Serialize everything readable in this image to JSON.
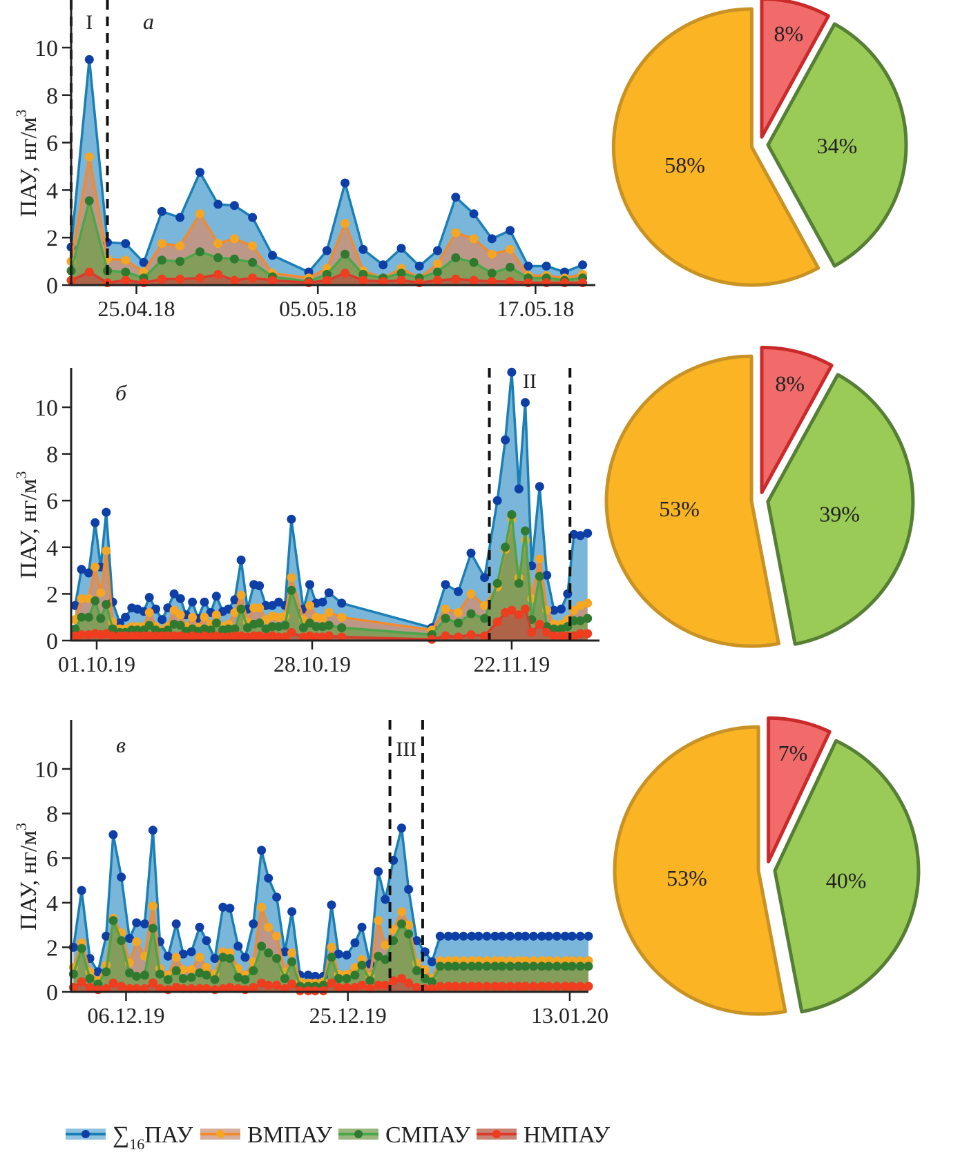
{
  "colors": {
    "total_line": "#1a7fb5",
    "total_marker": "#0d3fa6",
    "total_fill": "#6aaed6",
    "high_line": "#f28a2e",
    "high_marker": "#f5a623",
    "high_fill": "#c9937a",
    "medium_line": "#4aa64a",
    "medium_marker": "#2f7a2f",
    "medium_fill": "#7a9e52",
    "low_line": "#d93a2b",
    "low_marker": "#ee3d1f",
    "low_fill": "#b55a45",
    "pie_high": "#fbb424",
    "pie_high_edge": "#c89224",
    "pie_medium": "#9bcb57",
    "pie_medium_edge": "#567e35",
    "pie_low": "#f26b6b",
    "pie_low_edge": "#c92a2a"
  },
  "legend": {
    "items": [
      {
        "key": "total",
        "label_main": "∑",
        "label_sub": "16",
        "label_rest": "ПАУ"
      },
      {
        "key": "high",
        "label_main": "ВМПАУ",
        "label_sub": "",
        "label_rest": ""
      },
      {
        "key": "medium",
        "label_main": "СМПАУ",
        "label_sub": "",
        "label_rest": ""
      },
      {
        "key": "low",
        "label_main": "НМПАУ",
        "label_sub": "",
        "label_rest": ""
      }
    ]
  },
  "chart_data": [
    {
      "type": "area",
      "panel_label": "а",
      "ylabel": "ПАУ, нг/м",
      "ylabel_sup": "3",
      "ylim": [
        0,
        12
      ],
      "yticks": [
        0,
        2,
        4,
        6,
        8,
        10
      ],
      "xlim_days": [
        -3.6,
        25.3
      ],
      "xticks": [
        {
          "day": 0,
          "label": "25.04.18"
        },
        {
          "day": 10,
          "label": "05.05.18"
        },
        {
          "day": 22,
          "label": "17.05.18"
        }
      ],
      "period_label": "I",
      "period_days": [
        -3.6,
        -1.6
      ],
      "x_days": [
        -3.6,
        -2.6,
        -1.6,
        -0.6,
        0.4,
        1.4,
        2.4,
        3.5,
        4.5,
        5.4,
        6.4,
        7.5,
        9.5,
        10.5,
        11.5,
        12.5,
        13.6,
        14.6,
        15.6,
        16.6,
        17.6,
        18.6,
        19.6,
        20.6,
        21.6,
        22.6,
        23.6,
        24.6
      ],
      "series": [
        {
          "name": "∑16ПАУ",
          "key": "total",
          "values": [
            1.6,
            9.5,
            1.8,
            1.75,
            0.95,
            3.1,
            2.85,
            4.75,
            3.4,
            3.35,
            2.85,
            1.25,
            0.55,
            1.45,
            4.3,
            1.5,
            0.85,
            1.55,
            0.8,
            1.45,
            3.7,
            3.0,
            1.95,
            2.3,
            0.8,
            0.8,
            0.55,
            0.85
          ]
        },
        {
          "name": "ВМПАУ",
          "key": "high",
          "values": [
            1.0,
            5.4,
            1.1,
            1.05,
            0.55,
            1.75,
            1.65,
            3.0,
            1.75,
            1.95,
            1.65,
            0.5,
            0.3,
            0.7,
            2.6,
            0.6,
            0.3,
            0.7,
            0.3,
            0.9,
            2.2,
            1.95,
            1.3,
            1.5,
            0.4,
            0.4,
            0.3,
            0.45
          ]
        },
        {
          "name": "СМПАУ",
          "key": "medium",
          "values": [
            0.6,
            3.55,
            0.6,
            0.55,
            0.3,
            1.05,
            1.0,
            1.4,
            1.15,
            1.1,
            0.95,
            0.35,
            0.15,
            0.45,
            1.3,
            0.45,
            0.3,
            0.5,
            0.3,
            0.55,
            1.15,
            0.95,
            0.5,
            0.75,
            0.3,
            0.3,
            0.2,
            0.3
          ]
        },
        {
          "name": "НМПАУ",
          "key": "low",
          "values": [
            0.2,
            0.55,
            0.1,
            0.2,
            0.1,
            0.25,
            0.25,
            0.3,
            0.45,
            0.2,
            0.3,
            0.2,
            0.1,
            0.2,
            0.5,
            0.2,
            0.15,
            0.2,
            0.1,
            0.2,
            0.25,
            0.2,
            0.15,
            0.15,
            0.1,
            0.1,
            0.1,
            0.1
          ]
        }
      ],
      "pie": {
        "slices": [
          {
            "key": "low",
            "label": "8%",
            "value": 8
          },
          {
            "key": "medium",
            "label": "34%",
            "value": 34
          },
          {
            "key": "high",
            "label": "58%",
            "value": 58
          }
        ]
      }
    },
    {
      "type": "area",
      "panel_label": "б",
      "ylabel": "ПАУ, нг/м",
      "ylabel_sup": "3",
      "ylim": [
        0,
        11.8
      ],
      "yticks": [
        0,
        2,
        4,
        6,
        8,
        10
      ],
      "xlim_days": [
        -3.2,
        63
      ],
      "xticks": [
        {
          "day": 0,
          "label": "01.10.19"
        },
        {
          "day": 27,
          "label": "28.10.19"
        },
        {
          "day": 52,
          "label": "22.11.19"
        }
      ],
      "period_label": "II",
      "period_days": [
        49.2,
        59.3
      ],
      "x_days": [
        -2.7,
        -1.9,
        -1.0,
        -0.2,
        0.5,
        1.2,
        2.0,
        2.9,
        3.6,
        4.4,
        5.1,
        5.9,
        6.6,
        7.4,
        8.2,
        8.9,
        9.7,
        10.5,
        11.2,
        12.0,
        12.7,
        13.5,
        14.3,
        15.0,
        15.8,
        16.5,
        17.3,
        18.1,
        18.9,
        19.7,
        20.4,
        21.2,
        22.0,
        22.8,
        23.6,
        24.4,
        25.9,
        26.7,
        27.5,
        28.3,
        29.1,
        30.7,
        42.0,
        43.7,
        45.3,
        46.9,
        48.6,
        50.2,
        51.2,
        52.0,
        52.9,
        53.7,
        54.5,
        55.5,
        56.4,
        57.3,
        58.2,
        59.0,
        59.8,
        60.6,
        61.5
      ],
      "series": [
        {
          "name": "∑16ПАУ",
          "key": "total",
          "values": [
            1.5,
            3.05,
            2.9,
            5.05,
            3.15,
            5.5,
            1.65,
            0.75,
            1.0,
            1.4,
            1.35,
            1.25,
            1.85,
            1.35,
            0.9,
            1.4,
            2.0,
            1.8,
            1.1,
            1.65,
            0.95,
            1.65,
            1.2,
            1.9,
            1.25,
            1.35,
            1.75,
            3.45,
            1.35,
            2.4,
            2.35,
            1.5,
            1.5,
            1.65,
            1.5,
            5.2,
            1.35,
            2.4,
            1.6,
            1.65,
            2.05,
            1.6,
            0.55,
            2.4,
            2.1,
            3.75,
            2.7,
            6.0,
            8.6,
            11.5,
            6.5,
            10.2,
            3.2,
            6.6,
            2.8,
            1.3,
            1.35,
            2.0,
            4.55,
            4.5,
            4.6
          ]
        },
        {
          "name": "ВМПАУ",
          "key": "high",
          "values": [
            0.9,
            1.8,
            1.8,
            3.15,
            2.05,
            3.85,
            0.8,
            0.5,
            0.5,
            0.6,
            0.6,
            0.6,
            1.2,
            0.6,
            0.45,
            0.6,
            1.3,
            1.1,
            0.6,
            1.0,
            0.55,
            1.0,
            0.7,
            1.1,
            0.6,
            0.7,
            1.2,
            1.95,
            0.8,
            1.4,
            1.4,
            0.9,
            1.05,
            1.0,
            1.05,
            2.7,
            0.9,
            1.5,
            1.0,
            0.95,
            1.2,
            1.0,
            0.45,
            1.35,
            1.2,
            2.0,
            1.5,
            2.3,
            3.9,
            5.2,
            2.7,
            4.3,
            1.8,
            3.5,
            1.3,
            0.7,
            0.7,
            0.9,
            1.3,
            1.5,
            1.6
          ]
        },
        {
          "name": "СМПАУ",
          "key": "medium",
          "values": [
            0.5,
            1.0,
            1.0,
            1.7,
            0.95,
            1.55,
            0.5,
            0.35,
            0.35,
            0.45,
            0.45,
            0.45,
            0.65,
            0.45,
            0.35,
            0.45,
            0.7,
            0.65,
            0.4,
            0.5,
            0.4,
            0.5,
            0.45,
            0.75,
            0.45,
            0.5,
            0.5,
            1.35,
            0.55,
            0.7,
            0.75,
            0.5,
            0.6,
            0.6,
            0.65,
            2.15,
            0.55,
            0.75,
            0.6,
            0.6,
            0.65,
            0.55,
            0.25,
            0.95,
            0.75,
            1.15,
            0.95,
            2.45,
            4.0,
            5.4,
            2.45,
            4.7,
            0.9,
            2.75,
            0.6,
            0.5,
            0.5,
            0.6,
            0.85,
            0.85,
            0.95
          ]
        },
        {
          "name": "НМПАУ",
          "key": "low",
          "values": [
            0.2,
            0.25,
            0.25,
            0.3,
            0.25,
            0.3,
            0.2,
            0.2,
            0.2,
            0.2,
            0.2,
            0.2,
            0.2,
            0.2,
            0.2,
            0.2,
            0.2,
            0.2,
            0.15,
            0.2,
            0.15,
            0.2,
            0.15,
            0.2,
            0.15,
            0.15,
            0.2,
            0.2,
            0.15,
            0.2,
            0.2,
            0.15,
            0.2,
            0.15,
            0.15,
            0.35,
            0.15,
            0.2,
            0.15,
            0.15,
            0.2,
            0.15,
            0.05,
            0.2,
            0.15,
            0.25,
            0.2,
            0.8,
            1.2,
            1.3,
            1.1,
            1.35,
            0.35,
            0.7,
            0.35,
            0.2,
            0.2,
            0.2,
            0.2,
            0.3,
            0.3
          ]
        }
      ],
      "pie": {
        "slices": [
          {
            "key": "low",
            "label": "8%",
            "value": 8
          },
          {
            "key": "medium",
            "label": "39%",
            "value": 39
          },
          {
            "key": "high",
            "label": "53%",
            "value": 53
          }
        ]
      }
    },
    {
      "type": "area",
      "panel_label": "в",
      "ylabel": "ПАУ, нг/м",
      "ylabel_sup": "3",
      "ylim": [
        0,
        11.8
      ],
      "yticks": [
        0,
        2,
        4,
        6,
        8,
        10
      ],
      "xlim_days": [
        -4.7,
        39.6
      ],
      "xticks": [
        {
          "day": 0,
          "label": "06.12.19"
        },
        {
          "day": 19,
          "label": "25.12.19"
        },
        {
          "day": 38,
          "label": "13.01.20"
        }
      ],
      "period_label": "III",
      "period_days": [
        22.6,
        25.4
      ],
      "x_days": [
        -4.5,
        -3.8,
        -3.1,
        -2.4,
        -1.7,
        -1.1,
        -0.4,
        0.3,
        0.9,
        1.6,
        2.3,
        2.9,
        3.6,
        4.3,
        4.9,
        5.6,
        6.3,
        6.9,
        7.6,
        8.3,
        8.9,
        9.6,
        10.2,
        10.9,
        11.6,
        12.2,
        12.9,
        13.6,
        14.2,
        14.9,
        15.6,
        16.2,
        16.9,
        17.6,
        18.2,
        18.9,
        19.6,
        20.2,
        20.9,
        21.6,
        22.2,
        22.9,
        23.6,
        24.2,
        24.9,
        25.6,
        26.2,
        26.9,
        27.6,
        28.2,
        28.9,
        29.6,
        30.2,
        30.9,
        31.6,
        32.2,
        32.9,
        33.6,
        34.2,
        34.9,
        35.6,
        36.2,
        36.9,
        37.6,
        38.2,
        38.9,
        39.6
      ],
      "series": [
        {
          "name": "∑16ПАУ",
          "key": "total",
          "values": [
            2.0,
            4.55,
            1.5,
            0.9,
            2.5,
            7.05,
            5.15,
            2.4,
            3.1,
            3.05,
            7.25,
            2.25,
            1.6,
            3.05,
            1.7,
            1.8,
            2.9,
            2.3,
            1.5,
            3.8,
            3.75,
            2.05,
            1.55,
            3.05,
            6.35,
            5.1,
            4.25,
            1.8,
            3.6,
            0.75,
            0.75,
            0.7,
            0.7,
            3.9,
            1.7,
            1.65,
            2.2,
            2.9,
            1.25,
            5.4,
            4.15,
            5.9,
            7.35,
            4.6,
            2.3,
            1.8,
            1.35,
            2.5,
            2.5,
            2.5,
            2.5,
            2.5,
            2.5,
            2.5,
            2.5,
            2.5,
            2.5,
            2.5,
            2.5,
            2.5,
            2.5,
            2.5,
            2.5,
            2.5,
            2.5,
            2.5,
            2.5
          ]
        },
        {
          "name": "ВМПАУ",
          "key": "high",
          "values": [
            1.1,
            2.2,
            0.9,
            0.5,
            1.2,
            3.3,
            2.65,
            1.3,
            2.25,
            1.6,
            3.85,
            1.05,
            0.75,
            1.55,
            1.0,
            1.0,
            1.55,
            1.1,
            0.8,
            1.8,
            1.75,
            1.05,
            0.75,
            1.35,
            3.8,
            2.9,
            2.5,
            0.9,
            1.75,
            0.45,
            0.4,
            0.4,
            0.45,
            2.0,
            0.8,
            0.8,
            1.1,
            1.45,
            0.7,
            3.2,
            2.1,
            2.8,
            3.6,
            3.0,
            1.3,
            1.0,
            0.6,
            1.4,
            1.4,
            1.4,
            1.4,
            1.4,
            1.4,
            1.4,
            1.4,
            1.4,
            1.4,
            1.4,
            1.4,
            1.4,
            1.4,
            1.4,
            1.4,
            1.4,
            1.4,
            1.4,
            1.4
          ]
        },
        {
          "name": "СМПАУ",
          "key": "medium",
          "values": [
            0.8,
            1.95,
            0.6,
            0.35,
            0.9,
            3.2,
            2.3,
            0.85,
            0.7,
            0.75,
            2.85,
            0.8,
            0.55,
            0.95,
            0.6,
            0.65,
            0.85,
            0.75,
            0.55,
            1.55,
            1.5,
            0.65,
            0.55,
            0.95,
            2.05,
            1.75,
            1.5,
            0.6,
            1.35,
            0.25,
            0.25,
            0.25,
            0.3,
            1.55,
            0.6,
            0.6,
            0.75,
            1.2,
            0.5,
            1.6,
            1.45,
            2.3,
            3.05,
            2.6,
            0.95,
            0.6,
            0.45,
            1.15,
            1.15,
            1.15,
            1.15,
            1.15,
            1.15,
            1.15,
            1.15,
            1.15,
            1.15,
            1.15,
            1.15,
            1.15,
            1.15,
            1.15,
            1.15,
            1.15,
            1.15,
            1.15,
            1.15
          ]
        },
        {
          "name": "НМПАУ",
          "key": "low",
          "values": [
            0.2,
            0.45,
            0.2,
            0.1,
            0.15,
            0.4,
            0.25,
            0.15,
            0.15,
            0.15,
            0.4,
            0.15,
            0.1,
            0.2,
            0.15,
            0.15,
            0.15,
            0.15,
            0.1,
            0.15,
            0.2,
            0.15,
            0.1,
            0.2,
            0.4,
            0.3,
            0.3,
            0.15,
            0.35,
            0.05,
            0.05,
            0.05,
            0.05,
            0.4,
            0.2,
            0.2,
            0.2,
            0.3,
            0.15,
            0.3,
            0.3,
            0.5,
            0.6,
            0.4,
            0.2,
            0.15,
            0.15,
            0.25,
            0.25,
            0.25,
            0.25,
            0.25,
            0.25,
            0.25,
            0.25,
            0.25,
            0.25,
            0.25,
            0.25,
            0.25,
            0.25,
            0.25,
            0.25,
            0.25,
            0.25,
            0.25,
            0.25
          ]
        }
      ],
      "pie": {
        "slices": [
          {
            "key": "low",
            "label": "7%",
            "value": 7
          },
          {
            "key": "medium",
            "label": "40%",
            "value": 40
          },
          {
            "key": "high",
            "label": "53%",
            "value": 53
          }
        ]
      }
    }
  ]
}
